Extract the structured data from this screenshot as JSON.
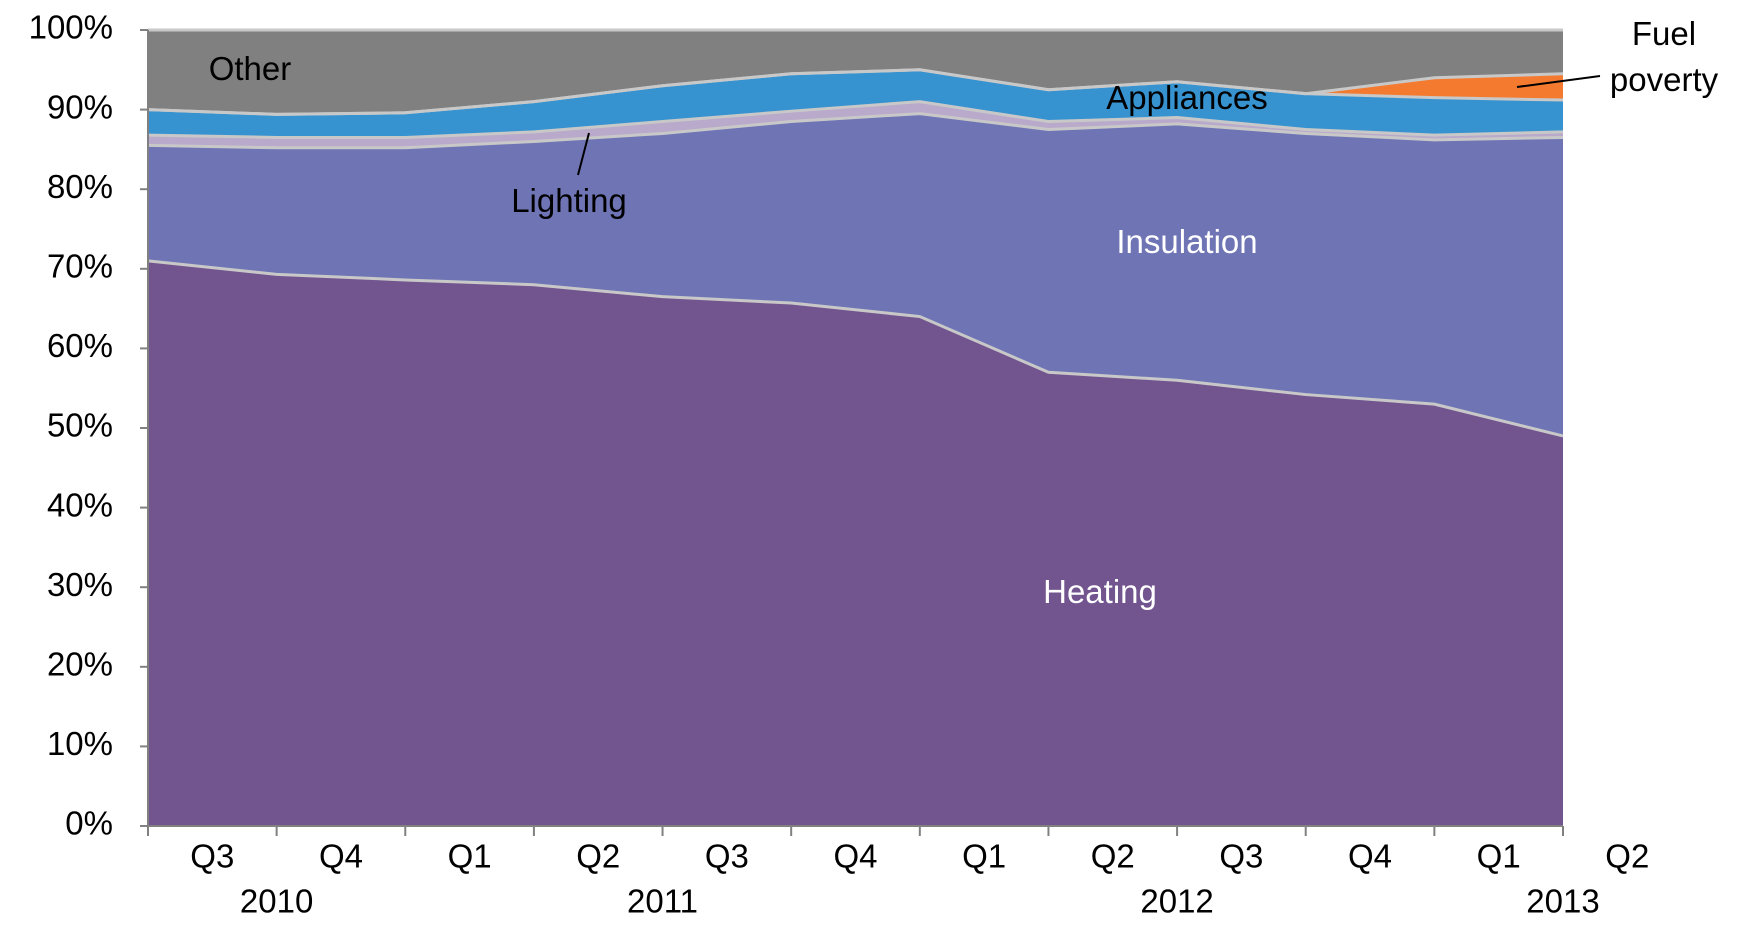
{
  "chart_data": {
    "type": "stacked_area",
    "categories": [
      "Q3",
      "Q4",
      "Q1",
      "Q2",
      "Q3",
      "Q4",
      "Q1",
      "Q2",
      "Q3",
      "Q4",
      "Q1",
      "Q2"
    ],
    "years": [
      "2010",
      "2010",
      "2011",
      "2011",
      "2011",
      "2011",
      "2012",
      "2012",
      "2012",
      "2012",
      "2013",
      "2013"
    ],
    "series": [
      {
        "name": "Heating",
        "color": "#72548f",
        "label_color": "#ffffff",
        "values": [
          71,
          69.3,
          68.6,
          68,
          66.5,
          65.7,
          64,
          57,
          56,
          54.2,
          53,
          49
        ]
      },
      {
        "name": "Insulation",
        "color": "#6f74b5",
        "label_color": "#ffffff",
        "values": [
          14.5,
          15.9,
          16.6,
          18,
          20.5,
          22.8,
          25.5,
          30.5,
          32.2,
          32.8,
          33.2,
          37.5
        ]
      },
      {
        "name": "Lighting",
        "color": "#b9a9cb",
        "label_color": "#000000",
        "values": [
          1.3,
          1.3,
          1.3,
          1.2,
          1.5,
          1.3,
          1.5,
          1,
          0.8,
          0.5,
          0.6,
          0.7
        ]
      },
      {
        "name": "Appliances",
        "color": "#3792d0",
        "label_color": "#000000",
        "values": [
          3.2,
          2.9,
          3.1,
          3.8,
          4.5,
          4.7,
          4,
          4,
          4.5,
          4.5,
          4.7,
          4
        ]
      },
      {
        "name": "Fuel poverty",
        "color": "#f47a30",
        "label_color": "#000000",
        "values": [
          0,
          0,
          0,
          0,
          0,
          0,
          0,
          0,
          0,
          0,
          2.5,
          3.3
        ]
      },
      {
        "name": "Other",
        "color": "#808080",
        "label_color": "#000000",
        "values": [
          10,
          10.6,
          10.4,
          9,
          7,
          5.5,
          5,
          7.5,
          6.5,
          8,
          6,
          5.5
        ]
      }
    ],
    "ylim": [
      0,
      100
    ],
    "yticks": [
      {
        "value": 0,
        "label": "0%"
      },
      {
        "value": 10,
        "label": "10%"
      },
      {
        "value": 20,
        "label": "20%"
      },
      {
        "value": 30,
        "label": "30%"
      },
      {
        "value": 40,
        "label": "40%"
      },
      {
        "value": 50,
        "label": "50%"
      },
      {
        "value": 60,
        "label": "60%"
      },
      {
        "value": 70,
        "label": "70%"
      },
      {
        "value": 80,
        "label": "80%"
      },
      {
        "value": 90,
        "label": "90%"
      },
      {
        "value": 100,
        "label": "100%"
      }
    ]
  }
}
